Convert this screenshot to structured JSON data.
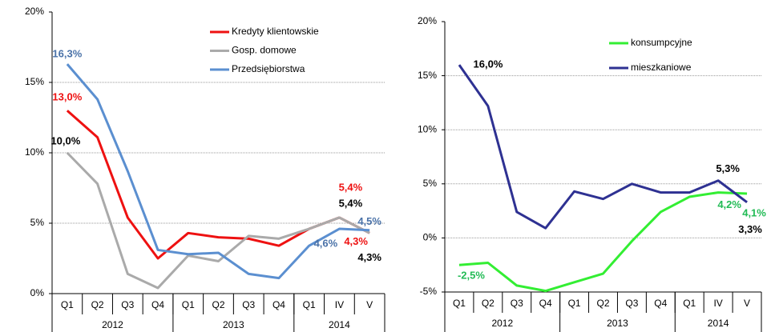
{
  "chart_data": [
    {
      "type": "line",
      "categories": [
        "Q1",
        "Q2",
        "Q3",
        "Q4",
        "Q1",
        "Q2",
        "Q3",
        "Q4",
        "Q1",
        "IV",
        "V"
      ],
      "groups": [
        "2012",
        "2013",
        "2014"
      ],
      "group_sizes": [
        4,
        4,
        3
      ],
      "ylim": [
        0,
        20
      ],
      "yticks": [
        {
          "value": 0,
          "label": "0%"
        },
        {
          "value": 5,
          "label": "5%"
        },
        {
          "value": 10,
          "label": "10%"
        },
        {
          "value": 15,
          "label": "15%"
        },
        {
          "value": 20,
          "label": "20%"
        }
      ],
      "grid": true,
      "legend": "upper center",
      "series": [
        {
          "name": "Kredyty klientowskie",
          "color": "#ee1111",
          "label_color": "#ee1111",
          "values": [
            13.0,
            11.1,
            5.4,
            2.5,
            4.3,
            4.0,
            3.9,
            3.4,
            4.6,
            5.4,
            4.3
          ],
          "value_labels": [
            "13,0%",
            null,
            null,
            null,
            null,
            null,
            null,
            null,
            null,
            "5,4%",
            "4,3%"
          ]
        },
        {
          "name": "Gosp. domowe",
          "color": "#aaaaaa",
          "label_color": "#000000",
          "values": [
            10.0,
            7.8,
            1.4,
            0.4,
            2.7,
            2.3,
            4.1,
            3.9,
            4.6,
            5.4,
            4.3
          ],
          "value_labels": [
            "10,0%",
            null,
            null,
            null,
            null,
            null,
            null,
            null,
            null,
            "5,4%",
            "4,3%"
          ]
        },
        {
          "name": "Przedsiębiorstwa",
          "color": "#5b8fd0",
          "label_color": "#4a72a8",
          "values": [
            16.3,
            13.8,
            8.7,
            3.1,
            2.8,
            2.9,
            1.4,
            1.1,
            3.4,
            4.6,
            4.5
          ],
          "value_labels": [
            "16,3%",
            null,
            null,
            null,
            null,
            null,
            null,
            null,
            null,
            "4,6%",
            "4,5%"
          ]
        }
      ]
    },
    {
      "type": "line",
      "categories": [
        "Q1",
        "Q2",
        "Q3",
        "Q4",
        "Q1",
        "Q2",
        "Q3",
        "Q4",
        "Q1",
        "IV",
        "V"
      ],
      "groups": [
        "2012",
        "2013",
        "2014"
      ],
      "group_sizes": [
        4,
        4,
        3
      ],
      "ylim": [
        -5,
        20
      ],
      "yticks": [
        {
          "value": -5,
          "label": "-5%"
        },
        {
          "value": 0,
          "label": "0%"
        },
        {
          "value": 5,
          "label": "5%"
        },
        {
          "value": 10,
          "label": "10%"
        },
        {
          "value": 15,
          "label": "15%"
        },
        {
          "value": 20,
          "label": "20%"
        }
      ],
      "grid": true,
      "legend": "upper center",
      "series": [
        {
          "name": "konsumpcyjne",
          "color": "#33ee33",
          "label_color": "#22bb55",
          "values": [
            -2.5,
            -2.3,
            -4.4,
            -4.9,
            -4.1,
            -3.3,
            -0.3,
            2.4,
            3.8,
            4.2,
            4.1
          ],
          "value_labels": [
            "-2,5%",
            null,
            null,
            null,
            null,
            null,
            null,
            null,
            null,
            "4,2%",
            "4,1%"
          ]
        },
        {
          "name": "mieszkaniowe",
          "color": "#2e3192",
          "label_color": "#000000",
          "values": [
            16.0,
            12.2,
            2.4,
            0.9,
            4.3,
            3.6,
            5.0,
            4.2,
            4.2,
            5.3,
            3.3
          ],
          "value_labels": [
            "16,0%",
            null,
            null,
            null,
            null,
            null,
            null,
            null,
            null,
            "5,3%",
            "3,3%"
          ]
        }
      ]
    }
  ]
}
